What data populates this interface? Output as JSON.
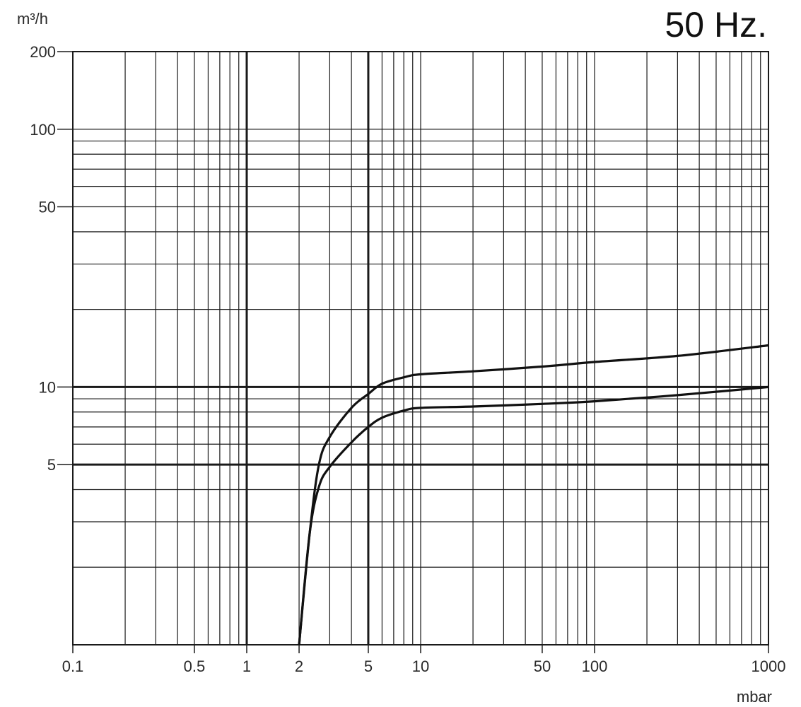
{
  "chart_data": {
    "type": "line",
    "title": "50 Hz.",
    "xlabel": "mbar",
    "ylabel": "m³/h",
    "xscale": "log",
    "yscale": "log",
    "xlim": [
      0.1,
      1000
    ],
    "ylim": [
      1,
      200
    ],
    "grid": true,
    "legend": "none",
    "x_ticks": [
      {
        "value": 0.1,
        "label": "0.1"
      },
      {
        "value": 0.5,
        "label": "0.5"
      },
      {
        "value": 1,
        "label": "1"
      },
      {
        "value": 2,
        "label": "2"
      },
      {
        "value": 5,
        "label": "5"
      },
      {
        "value": 10,
        "label": "10"
      },
      {
        "value": 50,
        "label": "50"
      },
      {
        "value": 100,
        "label": "100"
      },
      {
        "value": 1000,
        "label": "1000"
      }
    ],
    "y_ticks": [
      {
        "value": 5,
        "label": "5"
      },
      {
        "value": 10,
        "label": "10"
      },
      {
        "value": 50,
        "label": "50"
      },
      {
        "value": 100,
        "label": "100"
      },
      {
        "value": 200,
        "label": "200"
      }
    ],
    "series": [
      {
        "points": [
          [
            2.0,
            1.0
          ],
          [
            2.3,
            2.7
          ],
          [
            2.6,
            5.0
          ],
          [
            3.0,
            6.4
          ],
          [
            4.0,
            8.3
          ],
          [
            5.0,
            9.4
          ],
          [
            6.0,
            10.3
          ],
          [
            8.0,
            10.9
          ],
          [
            10.0,
            11.2
          ],
          [
            20.0,
            11.5
          ],
          [
            50.0,
            12.0
          ],
          [
            100.0,
            12.5
          ],
          [
            300.0,
            13.2
          ],
          [
            1000.0,
            14.5
          ]
        ]
      },
      {
        "points": [
          [
            2.0,
            1.0
          ],
          [
            2.3,
            2.7
          ],
          [
            2.6,
            4.1
          ],
          [
            3.0,
            4.9
          ],
          [
            4.0,
            6.1
          ],
          [
            5.0,
            7.0
          ],
          [
            6.0,
            7.6
          ],
          [
            8.0,
            8.1
          ],
          [
            10.0,
            8.3
          ],
          [
            20.0,
            8.4
          ],
          [
            50.0,
            8.6
          ],
          [
            100.0,
            8.8
          ],
          [
            300.0,
            9.3
          ],
          [
            1000.0,
            10.0
          ]
        ]
      }
    ]
  }
}
